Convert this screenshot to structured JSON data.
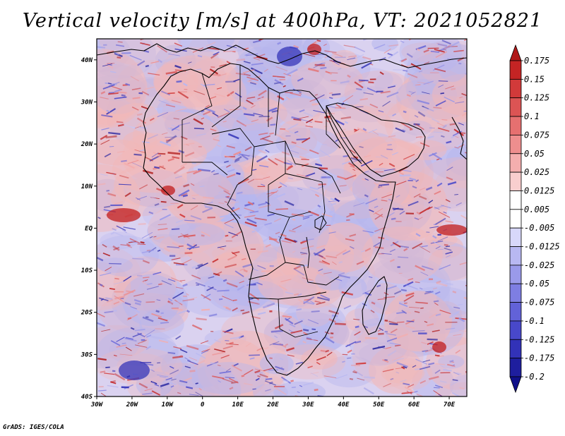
{
  "title": "Vertical velocity [m/s] at 400hPa, VT: 2021052821",
  "footer": "GrADS: IGES/COLA",
  "map": {
    "lat_labels": [
      "40N",
      "30N",
      "20N",
      "10N",
      "EQ",
      "10S",
      "20S",
      "30S",
      "40S"
    ],
    "lon_labels": [
      "30W",
      "20W",
      "10W",
      "0",
      "10E",
      "20E",
      "30E",
      "40E",
      "50E",
      "60E",
      "70E"
    ],
    "lat_range": [
      -40,
      45
    ],
    "lon_range": [
      -30,
      75
    ]
  },
  "colorbar": {
    "labels": [
      "0.175",
      "0.15",
      "0.125",
      "0.1",
      "0.075",
      "0.05",
      "0.025",
      "0.0125",
      "0.005",
      "-0.005",
      "-0.0125",
      "-0.025",
      "-0.05",
      "-0.075",
      "-0.1",
      "-0.125",
      "-0.175",
      "-0.2"
    ],
    "colors": [
      "#b01818",
      "#c42424",
      "#d23a3a",
      "#dc5454",
      "#e67070",
      "#ee8e8e",
      "#f4aeae",
      "#f9cece",
      "#ffffff",
      "#ffffff",
      "#d8d8fa",
      "#b8b8f2",
      "#9a9aea",
      "#7e7ee2",
      "#6262d8",
      "#4848ca",
      "#3232b8",
      "#1e1e9e",
      "#10108a"
    ]
  },
  "legend_colors": {
    "ocean_pink": "#f2b8b8",
    "ocean_blue": "#b6b6ee",
    "background_lilac": "#dad2f0",
    "strong_red": "#c21c1c",
    "strong_blue": "#3636b8"
  }
}
